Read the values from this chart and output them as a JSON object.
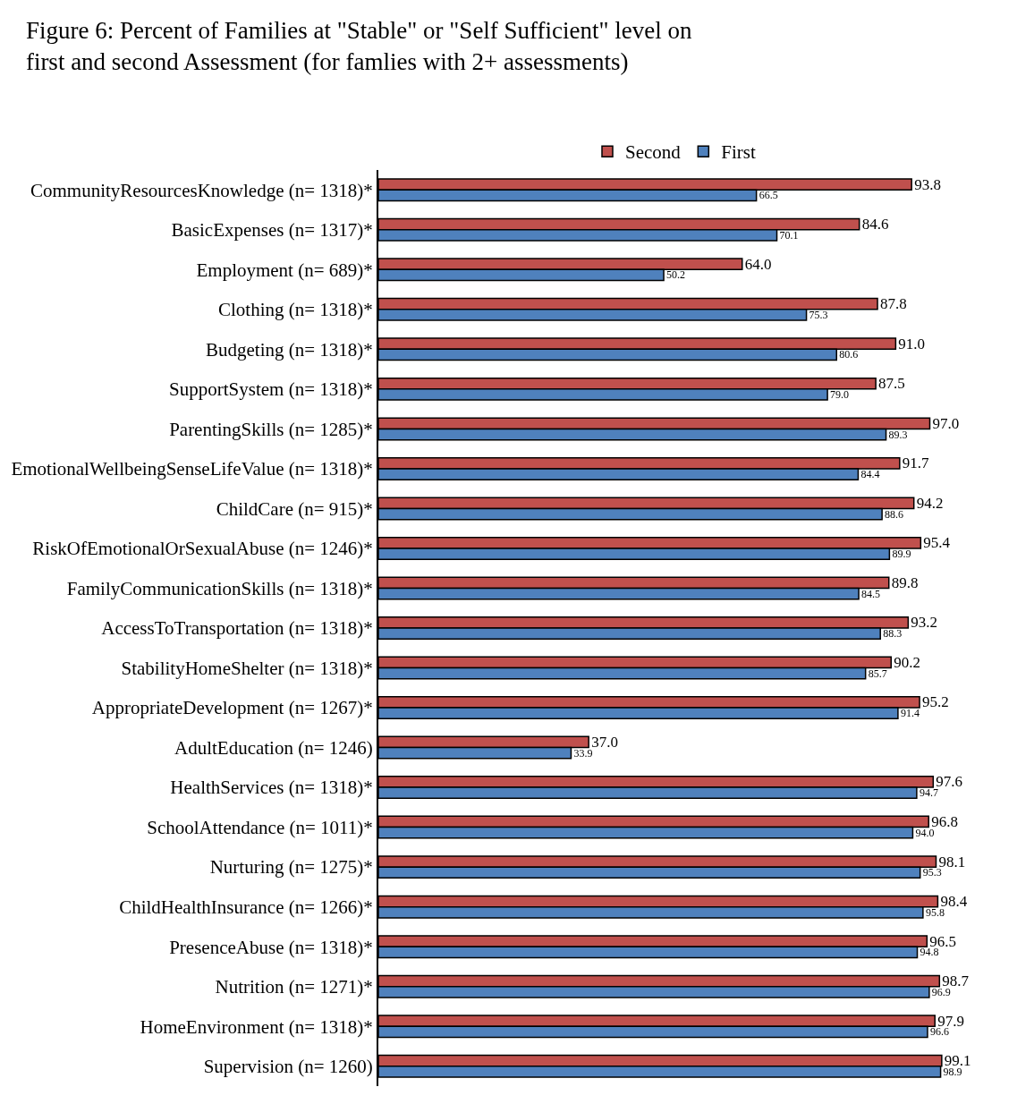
{
  "chart_data": {
    "type": "bar",
    "orientation": "horizontal",
    "title": "Figure 6: Percent of Families at \"Stable\" or \"Self Sufficient\" level on\nfirst and second Assessment (for famlies with 2+ assessments)",
    "categories": [
      "CommunityResourcesKnowledge (n= 1318)*",
      "BasicExpenses (n= 1317)*",
      "Employment (n= 689)*",
      "Clothing (n= 1318)*",
      "Budgeting (n= 1318)*",
      "SupportSystem (n= 1318)*",
      "ParentingSkills (n= 1285)*",
      "EmotionalWellbeingSenseLifeValue (n= 1318)*",
      "ChildCare (n= 915)*",
      "RiskOfEmotionalOrSexualAbuse (n= 1246)*",
      "FamilyCommunicationSkills (n= 1318)*",
      "AccessToTransportation (n= 1318)*",
      "StabilityHomeShelter (n= 1318)*",
      "AppropriateDevelopment (n= 1267)*",
      "AdultEducation (n= 1246)",
      "HealthServices (n= 1318)*",
      "SchoolAttendance (n= 1011)*",
      "Nurturing (n= 1275)*",
      "ChildHealthInsurance (n= 1266)*",
      "PresenceAbuse (n= 1318)*",
      "Nutrition (n= 1271)*",
      "HomeEnvironment (n= 1318)*",
      "Supervision (n= 1260)"
    ],
    "series": [
      {
        "name": "Second",
        "color": "#c0504d",
        "values": [
          93.8,
          84.6,
          64.0,
          87.8,
          91.0,
          87.5,
          97.0,
          91.7,
          94.2,
          95.4,
          89.8,
          93.2,
          90.2,
          95.2,
          37.0,
          97.6,
          96.8,
          98.1,
          98.4,
          96.5,
          98.7,
          97.9,
          99.1
        ],
        "value_labels": [
          "93.8",
          "84.6",
          "64.0",
          "87.8",
          "91.0",
          "87.5",
          "97.0",
          "91.7",
          "94.2",
          "95.4",
          "89.8",
          "93.2",
          "90.2",
          "95.2",
          "37.0",
          "97.6",
          "96.8",
          "98.1",
          "98.4",
          "96.5",
          "98.7",
          "97.9",
          "99.1"
        ]
      },
      {
        "name": "First",
        "color": "#4f81bd",
        "values": [
          66.5,
          70.1,
          50.2,
          75.3,
          80.6,
          79.0,
          89.3,
          84.4,
          88.6,
          89.9,
          84.5,
          88.3,
          85.7,
          91.4,
          33.9,
          94.7,
          94.0,
          95.3,
          95.8,
          94.8,
          96.9,
          96.6,
          98.9
        ],
        "value_labels": [
          "66.5",
          "70.1",
          "50.2",
          "75.3",
          "80.6",
          "79.0",
          "89.3",
          "84.4",
          "88.6",
          "89.9",
          "84.5",
          "88.3",
          "85.7",
          "91.4",
          "33.9",
          "94.7",
          "94.0",
          "95.3",
          "95.8",
          "94.8",
          "96.9",
          "96.6",
          "98.9"
        ]
      }
    ],
    "legend": "top"
  }
}
